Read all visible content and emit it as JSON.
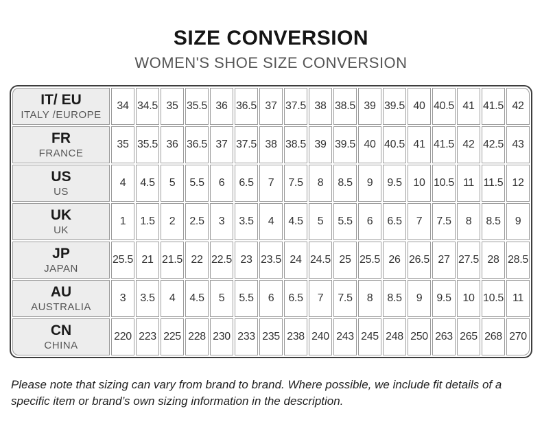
{
  "header": {
    "title": "SIZE CONVERSION",
    "subtitle": "WOMEN'S SHOE SIZE CONVERSION"
  },
  "table": {
    "rows": [
      {
        "code": "IT/ EU",
        "region": "ITALY /EUROPE",
        "values": [
          "34",
          "34.5",
          "35",
          "35.5",
          "36",
          "36.5",
          "37",
          "37.5",
          "38",
          "38.5",
          "39",
          "39.5",
          "40",
          "40.5",
          "41",
          "41.5",
          "42"
        ]
      },
      {
        "code": "FR",
        "region": "FRANCE",
        "values": [
          "35",
          "35.5",
          "36",
          "36.5",
          "37",
          "37.5",
          "38",
          "38.5",
          "39",
          "39.5",
          "40",
          "40.5",
          "41",
          "41.5",
          "42",
          "42.5",
          "43"
        ]
      },
      {
        "code": "US",
        "region": "US",
        "values": [
          "4",
          "4.5",
          "5",
          "5.5",
          "6",
          "6.5",
          "7",
          "7.5",
          "8",
          "8.5",
          "9",
          "9.5",
          "10",
          "10.5",
          "11",
          "11.5",
          "12"
        ]
      },
      {
        "code": "UK",
        "region": "UK",
        "values": [
          "1",
          "1.5",
          "2",
          "2.5",
          "3",
          "3.5",
          "4",
          "4.5",
          "5",
          "5.5",
          "6",
          "6.5",
          "7",
          "7.5",
          "8",
          "8.5",
          "9"
        ]
      },
      {
        "code": "JP",
        "region": "JAPAN",
        "values": [
          "25.5",
          "21",
          "21.5",
          "22",
          "22.5",
          "23",
          "23.5",
          "24",
          "24.5",
          "25",
          "25.5",
          "26",
          "26.5",
          "27",
          "27.5",
          "28",
          "28.5"
        ]
      },
      {
        "code": "AU",
        "region": "AUSTRALIA",
        "values": [
          "3",
          "3.5",
          "4",
          "4.5",
          "5",
          "5.5",
          "6",
          "6.5",
          "7",
          "7.5",
          "8",
          "8.5",
          "9",
          "9.5",
          "10",
          "10.5",
          "11"
        ]
      },
      {
        "code": "CN",
        "region": "CHINA",
        "values": [
          "220",
          "223",
          "225",
          "228",
          "230",
          "233",
          "235",
          "238",
          "240",
          "243",
          "245",
          "248",
          "250",
          "263",
          "265",
          "268",
          "270"
        ]
      }
    ]
  },
  "note": "Please note that sizing can vary from brand to brand. Where possible, we include fit details of a specific item or brand’s own sizing information in the description.",
  "colors": {
    "outer_border": "#3d3d3d",
    "grid_line": "#9a9a9a",
    "header_cell_bg": "#ededed",
    "title_text": "#151515",
    "subtitle_text": "#555555",
    "value_text": "#333333"
  }
}
